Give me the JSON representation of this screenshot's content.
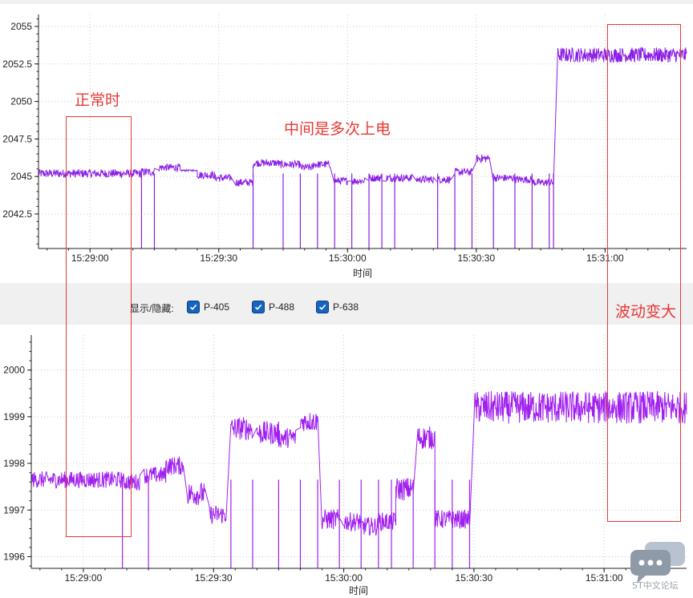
{
  "legend": {
    "title": "显示/隐藏:",
    "items": [
      {
        "label": "P-405",
        "checked": true
      },
      {
        "label": "P-488",
        "checked": true
      },
      {
        "label": "P-638",
        "checked": true
      }
    ]
  },
  "annotations": {
    "normal": "正常时",
    "middle": "中间是多次上电",
    "fluctuation": "波动变大"
  },
  "watermark": "ST中文论坛",
  "chart_data": [
    {
      "type": "line",
      "title": "",
      "xlabel": "时间",
      "ylabel": "",
      "x_range": [
        "15:28:48",
        "15:31:19"
      ],
      "xticks": [
        "15:29:00",
        "15:29:30",
        "15:30:00",
        "15:30:30",
        "15:31:00"
      ],
      "ylim": [
        2040.2,
        2055.8
      ],
      "yticks": [
        "2042.5",
        "2045",
        "2047.5",
        "2050",
        "2052.5",
        "2055"
      ],
      "grid": true,
      "line_color": "#8a1ee6",
      "segments": [
        {
          "from": "15:28:48",
          "to": "15:29:12",
          "value": 2045.2,
          "noise": 0.28
        },
        {
          "from": "15:29:12",
          "to": "15:29:15",
          "value": 2045.3,
          "noise": 0.28
        },
        {
          "from": "15:29:16",
          "to": "15:29:21",
          "value": 2045.6,
          "noise": 0.25
        },
        {
          "from": "15:29:21",
          "to": "15:29:25",
          "value": 2045.4,
          "noise": 0.05
        },
        {
          "from": "15:29:25",
          "to": "15:29:29",
          "value": 2045.1,
          "noise": 0.25
        },
        {
          "from": "15:29:29",
          "to": "15:29:33",
          "value": 2044.9,
          "noise": 0.25
        },
        {
          "from": "15:29:34",
          "to": "15:29:38",
          "value": 2044.6,
          "noise": 0.25
        },
        {
          "from": "15:29:38",
          "to": "15:29:44",
          "value": 2045.9,
          "noise": 0.25
        },
        {
          "from": "15:29:44",
          "to": "15:29:49",
          "value": 2045.8,
          "noise": 0.25
        },
        {
          "from": "15:29:49",
          "to": "15:29:52",
          "value": 2045.6,
          "noise": 0.25
        },
        {
          "from": "15:29:52",
          "to": "15:29:56",
          "value": 2045.8,
          "noise": 0.25
        },
        {
          "from": "15:29:57",
          "to": "15:30:00",
          "value": 2044.7,
          "noise": 0.25
        },
        {
          "from": "15:30:01",
          "to": "15:30:04",
          "value": 2044.7,
          "noise": 0.25
        },
        {
          "from": "15:30:05",
          "to": "15:30:08",
          "value": 2044.9,
          "noise": 0.25
        },
        {
          "from": "15:30:09",
          "to": "15:30:15",
          "value": 2044.9,
          "noise": 0.25
        },
        {
          "from": "15:30:16",
          "to": "15:30:20",
          "value": 2044.8,
          "noise": 0.25
        },
        {
          "from": "15:30:21",
          "to": "15:30:24",
          "value": 2044.8,
          "noise": 0.25
        },
        {
          "from": "15:30:25",
          "to": "15:30:29",
          "value": 2045.3,
          "noise": 0.25
        },
        {
          "from": "15:30:30",
          "to": "15:30:33",
          "value": 2046.2,
          "noise": 0.28
        },
        {
          "from": "15:30:34",
          "to": "15:30:39",
          "value": 2044.9,
          "noise": 0.25
        },
        {
          "from": "15:30:39",
          "to": "15:30:43",
          "value": 2044.8,
          "noise": 0.25
        },
        {
          "from": "15:30:43",
          "to": "15:30:48",
          "value": 2044.6,
          "noise": 0.25
        },
        {
          "from": "15:30:49",
          "to": "15:31:19",
          "value": 2053.1,
          "noise": 0.5
        }
      ],
      "dropouts": [
        "15:29:12",
        "15:29:15",
        "15:29:38",
        "15:29:45",
        "15:29:49",
        "15:29:53",
        "15:29:57",
        "15:30:01",
        "15:30:05",
        "15:30:08",
        "15:30:11",
        "15:30:21",
        "15:30:25",
        "15:30:29",
        "15:30:34",
        "15:30:39",
        "15:30:43",
        "15:30:47",
        "15:30:48"
      ]
    },
    {
      "type": "line",
      "title": "",
      "xlabel": "时间",
      "ylabel": "",
      "x_range": [
        "15:28:48",
        "15:31:19"
      ],
      "xticks": [
        "15:29:00",
        "15:29:30",
        "15:30:00",
        "15:30:30",
        "15:31:00"
      ],
      "ylim": [
        1995.75,
        2000.75
      ],
      "yticks": [
        "1996",
        "1997",
        "1998",
        "1999",
        "2000"
      ],
      "grid": true,
      "line_color": "#a020f0",
      "segments": [
        {
          "from": "15:28:48",
          "to": "15:29:09",
          "value": 1997.65,
          "noise": 0.18
        },
        {
          "from": "15:29:09",
          "to": "15:29:13",
          "value": 1997.6,
          "noise": 0.18
        },
        {
          "from": "15:29:14",
          "to": "15:29:19",
          "value": 1997.75,
          "noise": 0.18
        },
        {
          "from": "15:29:19",
          "to": "15:29:23",
          "value": 1997.95,
          "noise": 0.2
        },
        {
          "from": "15:29:24",
          "to": "15:29:28",
          "value": 1997.35,
          "noise": 0.25
        },
        {
          "from": "15:29:29",
          "to": "15:29:33",
          "value": 1996.9,
          "noise": 0.2
        },
        {
          "from": "15:29:34",
          "to": "15:29:39",
          "value": 1998.75,
          "noise": 0.25
        },
        {
          "from": "15:29:40",
          "to": "15:29:45",
          "value": 1998.65,
          "noise": 0.25
        },
        {
          "from": "15:29:45",
          "to": "15:29:49",
          "value": 1998.55,
          "noise": 0.22
        },
        {
          "from": "15:29:50",
          "to": "15:29:54",
          "value": 1998.9,
          "noise": 0.22
        },
        {
          "from": "15:29:55",
          "to": "15:29:59",
          "value": 1996.8,
          "noise": 0.22
        },
        {
          "from": "15:30:00",
          "to": "15:30:04",
          "value": 1996.75,
          "noise": 0.2
        },
        {
          "from": "15:30:04",
          "to": "15:30:08",
          "value": 1996.65,
          "noise": 0.2
        },
        {
          "from": "15:30:08",
          "to": "15:30:12",
          "value": 1996.75,
          "noise": 0.2
        },
        {
          "from": "15:30:12",
          "to": "15:30:16",
          "value": 1997.45,
          "noise": 0.25
        },
        {
          "from": "15:30:17",
          "to": "15:30:21",
          "value": 1998.55,
          "noise": 0.25
        },
        {
          "from": "15:30:21",
          "to": "15:30:25",
          "value": 1996.8,
          "noise": 0.2
        },
        {
          "from": "15:30:25",
          "to": "15:30:29",
          "value": 1996.8,
          "noise": 0.2
        },
        {
          "from": "15:30:30",
          "to": "15:31:19",
          "value": 1999.2,
          "noise": 0.35
        }
      ],
      "dropouts": [
        "15:29:09",
        "15:29:15",
        "15:29:34",
        "15:29:39",
        "15:29:45",
        "15:29:50",
        "15:29:54",
        "15:29:59",
        "15:30:04",
        "15:30:08",
        "15:30:11",
        "15:30:16",
        "15:30:21",
        "15:30:25",
        "15:30:29"
      ]
    }
  ]
}
